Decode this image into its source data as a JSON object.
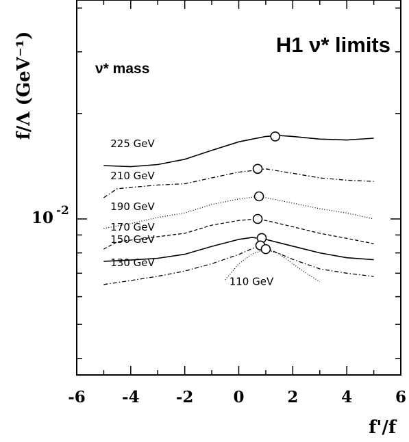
{
  "chart_data": {
    "type": "line",
    "title": "H1 ν* limits",
    "legend_title": "ν* mass",
    "xlabel": "f'/f",
    "ylabel": "f/Λ (GeV⁻¹)",
    "xlim": [
      -6,
      6
    ],
    "x_ticks": [
      "-6",
      "-4",
      "-2",
      "0",
      "2",
      "4",
      "6"
    ],
    "y_scale": "log",
    "y_tick_label": "10",
    "y_tick_exponent": "-2",
    "grid": false,
    "series": [
      {
        "name": "225 GeV",
        "style": "solid",
        "marker": [
          1.35,
          0.0172
        ],
        "x": [
          -5,
          -4,
          -3,
          -2,
          -1,
          0,
          0.5,
          1,
          1.5,
          2,
          3,
          4,
          5
        ],
        "y": [
          0.0142,
          0.0141,
          0.0143,
          0.0148,
          0.0157,
          0.0166,
          0.0169,
          0.0172,
          0.0173,
          0.0172,
          0.0169,
          0.0168,
          0.017
        ]
      },
      {
        "name": "210 GeV",
        "style": "dashdot",
        "marker": [
          0.7,
          0.0139
        ],
        "x": [
          -5,
          -4.5,
          -4,
          -3,
          -2,
          -1,
          0,
          0.7,
          1,
          2,
          3,
          4,
          5
        ],
        "y": [
          0.0115,
          0.0122,
          0.0123,
          0.0125,
          0.0126,
          0.0131,
          0.0136,
          0.0138,
          0.0139,
          0.0135,
          0.0131,
          0.0129,
          0.0128
        ]
      },
      {
        "name": "190 GeV",
        "style": "dotted",
        "marker": [
          0.75,
          0.0116
        ],
        "x": [
          -5,
          -4,
          -3,
          -2,
          -1,
          0,
          0.75,
          1,
          2,
          3,
          4,
          5
        ],
        "y": [
          0.0094,
          0.0097,
          0.0101,
          0.0104,
          0.011,
          0.0114,
          0.0116,
          0.0115,
          0.0111,
          0.0107,
          0.0104,
          0.01
        ]
      },
      {
        "name": "170 GeV",
        "style": "dashed",
        "marker": [
          0.7,
          0.01
        ],
        "x": [
          -5,
          -4.5,
          -4,
          -3,
          -2,
          -1,
          0,
          0.7,
          1,
          2,
          3,
          4,
          5
        ],
        "y": [
          0.0082,
          0.0086,
          0.0087,
          0.0089,
          0.0091,
          0.0096,
          0.0099,
          0.01,
          0.0099,
          0.0095,
          0.0091,
          0.0088,
          0.0085
        ]
      },
      {
        "name": "150 GeV",
        "style": "solid",
        "marker": [
          0.85,
          0.00882
        ],
        "x": [
          -5,
          -4,
          -3,
          -2,
          -1,
          0,
          0.5,
          1,
          2,
          3,
          4,
          5
        ],
        "y": [
          0.00757,
          0.00763,
          0.00772,
          0.00793,
          0.00835,
          0.00874,
          0.00886,
          0.00874,
          0.00836,
          0.008,
          0.00775,
          0.00765
        ]
      },
      {
        "name": "130 GeV",
        "style": "dashdot",
        "marker": [
          0.8,
          0.0084
        ],
        "x": [
          -5,
          -4,
          -3,
          -2,
          -1,
          0,
          0.5,
          0.8,
          1,
          2,
          3,
          4,
          5
        ],
        "y": [
          0.0065,
          0.00667,
          0.00686,
          0.0071,
          0.00745,
          0.00792,
          0.00823,
          0.00836,
          0.00826,
          0.00767,
          0.0072,
          0.007,
          0.00685
        ]
      },
      {
        "name": "110 GeV",
        "style": "dotted",
        "marker": [
          1.0,
          0.0082
        ],
        "x": [
          -0.5,
          0,
          0.5,
          1.0,
          1.5,
          2,
          2.5,
          3.0
        ],
        "y": [
          0.0067,
          0.00745,
          0.00795,
          0.00818,
          0.00795,
          0.00745,
          0.007,
          0.00662
        ]
      }
    ]
  }
}
